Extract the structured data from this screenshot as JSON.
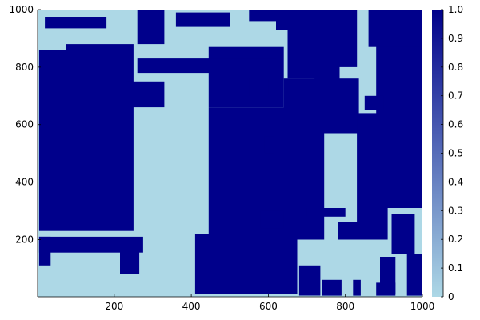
{
  "chart_data": {
    "type": "heatmap",
    "title": "",
    "xlabel": "",
    "ylabel": "",
    "xlim": [
      1,
      1000
    ],
    "ylim": [
      1,
      1000
    ],
    "grid": false,
    "x_ticks": [
      200,
      400,
      600,
      800,
      1000
    ],
    "y_ticks": [
      200,
      400,
      600,
      800,
      1000
    ],
    "colorbar": {
      "min": 0,
      "max": 1,
      "ticks": [
        0,
        0.1,
        0.2,
        0.3,
        0.4,
        0.5,
        0.6,
        0.7,
        0.8,
        0.9,
        1.0
      ],
      "tick_labels": [
        "0",
        "0.1",
        "0.2",
        "0.3",
        "0.4",
        "0.5",
        "0.6",
        "0.7",
        "0.8",
        "0.9",
        "1.0"
      ],
      "color_low": "#add8e6",
      "color_high": "#00008b"
    },
    "background_value": 0,
    "regions_value_1": [
      {
        "x": [
          5,
          250
        ],
        "y": [
          230,
          860
        ]
      },
      {
        "x": [
          445,
          745
        ],
        "y": [
          200,
          660
        ]
      },
      {
        "x": [
          5,
          275
        ],
        "y": [
          155,
          210
        ]
      },
      {
        "x": [
          5,
          35
        ],
        "y": [
          110,
          210
        ]
      },
      {
        "x": [
          215,
          265
        ],
        "y": [
          80,
          180
        ]
      },
      {
        "x": [
          410,
          675
        ],
        "y": [
          10,
          220
        ]
      },
      {
        "x": [
          680,
          735
        ],
        "y": [
          5,
          110
        ]
      },
      {
        "x": [
          740,
          790
        ],
        "y": [
          5,
          60
        ]
      },
      {
        "x": [
          820,
          840
        ],
        "y": [
          5,
          60
        ]
      },
      {
        "x": [
          880,
          930
        ],
        "y": [
          5,
          50
        ]
      },
      {
        "x": [
          960,
          1000
        ],
        "y": [
          5,
          150
        ]
      },
      {
        "x": [
          445,
          640
        ],
        "y": [
          660,
          870
        ]
      },
      {
        "x": [
          640,
          835
        ],
        "y": [
          570,
          760
        ]
      },
      {
        "x": [
          650,
          780
        ],
        "y": [
          760,
          930
        ]
      },
      {
        "x": [
          720,
          785
        ],
        "y": [
          680,
          1000
        ]
      },
      {
        "x": [
          620,
          740
        ],
        "y": [
          930,
          1000
        ]
      },
      {
        "x": [
          775,
          830
        ],
        "y": [
          800,
          1000
        ]
      },
      {
        "x": [
          830,
          910
        ],
        "y": [
          200,
          640
        ]
      },
      {
        "x": [
          880,
          1000
        ],
        "y": [
          310,
          1000
        ]
      },
      {
        "x": [
          850,
          900
        ],
        "y": [
          650,
          700
        ]
      },
      {
        "x": [
          860,
          1000
        ],
        "y": [
          870,
          1000
        ]
      },
      {
        "x": [
          700,
          800
        ],
        "y": [
          280,
          310
        ]
      },
      {
        "x": [
          780,
          840
        ],
        "y": [
          200,
          260
        ]
      },
      {
        "x": [
          75,
          250
        ],
        "y": [
          860,
          880
        ]
      },
      {
        "x": [
          20,
          180
        ],
        "y": [
          935,
          975
        ]
      },
      {
        "x": [
          260,
          330
        ],
        "y": [
          880,
          1000
        ]
      },
      {
        "x": [
          260,
          620
        ],
        "y": [
          780,
          830
        ]
      },
      {
        "x": [
          360,
          500
        ],
        "y": [
          940,
          990
        ]
      },
      {
        "x": [
          550,
          620
        ],
        "y": [
          960,
          1000
        ]
      },
      {
        "x": [
          590,
          615
        ],
        "y": [
          500,
          560
        ]
      },
      {
        "x": [
          470,
          595
        ],
        "y": [
          300,
          340
        ]
      },
      {
        "x": [
          580,
          640
        ],
        "y": [
          240,
          300
        ]
      },
      {
        "x": [
          230,
          330
        ],
        "y": [
          660,
          750
        ]
      },
      {
        "x": [
          920,
          980
        ],
        "y": [
          150,
          290
        ]
      },
      {
        "x": [
          890,
          930
        ],
        "y": [
          10,
          140
        ]
      },
      {
        "x": [
          550,
          600
        ],
        "y": [
          700,
          760
        ]
      }
    ]
  }
}
